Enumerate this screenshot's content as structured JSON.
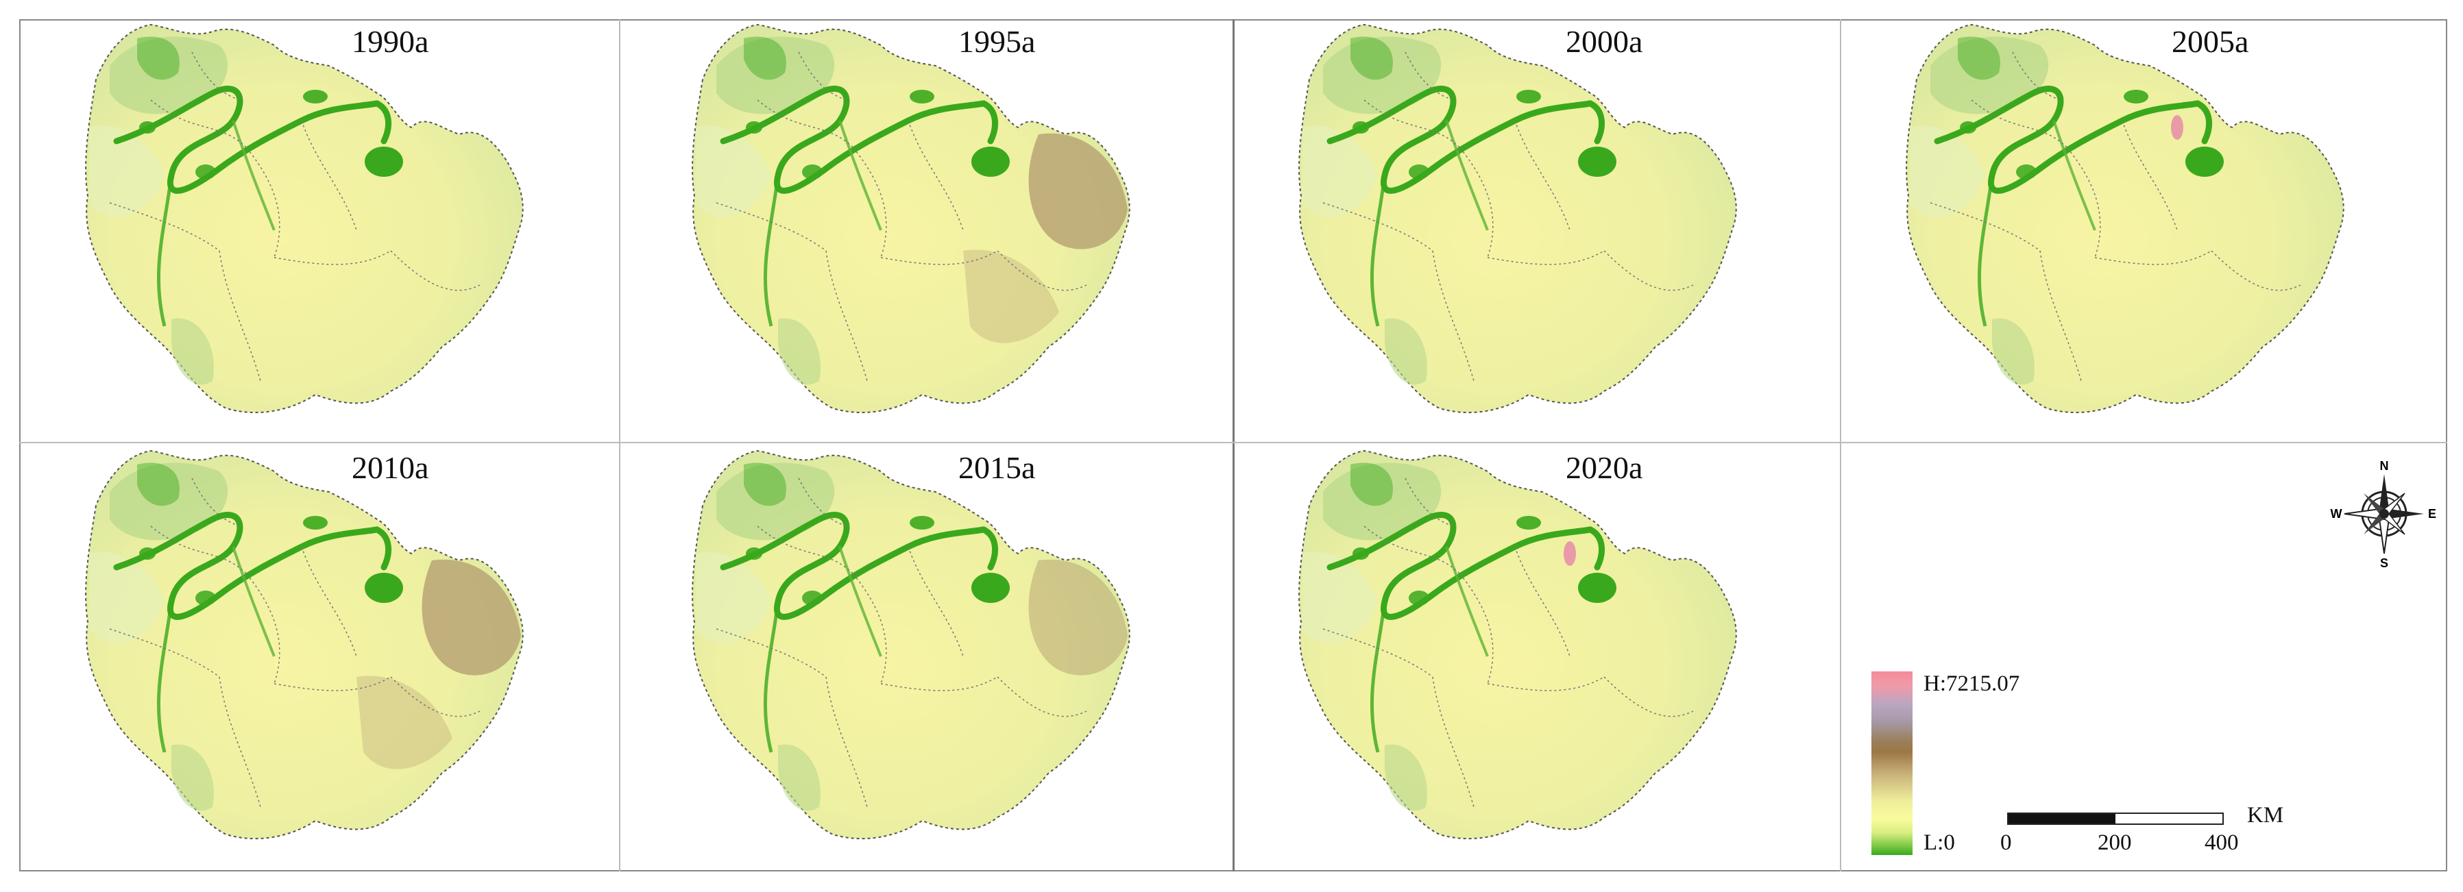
{
  "panels": [
    {
      "year": "1990a",
      "variant": "base"
    },
    {
      "year": "1995a",
      "variant": "east-brown"
    },
    {
      "year": "2000a",
      "variant": "base"
    },
    {
      "year": "2005a",
      "variant": "pink-spot"
    },
    {
      "year": "2010a",
      "variant": "east-brown"
    },
    {
      "year": "2015a",
      "variant": "east-brown-light"
    },
    {
      "year": "2020a",
      "variant": "pink-spot"
    }
  ],
  "legend": {
    "high_label": "H:7215.07",
    "low_label": "L:0"
  },
  "scale": {
    "unit": "KM",
    "ticks": [
      "0",
      "200",
      "400"
    ]
  },
  "compass": {
    "n": "N",
    "s": "S",
    "e": "E",
    "w": "W"
  },
  "colors": {
    "base_fill": "#f2f2a0",
    "green_dark": "#3aa81c",
    "green_light": "#b9d98c",
    "brown": "#b8a574",
    "pink": "#e89aa8",
    "border": "#555555"
  }
}
